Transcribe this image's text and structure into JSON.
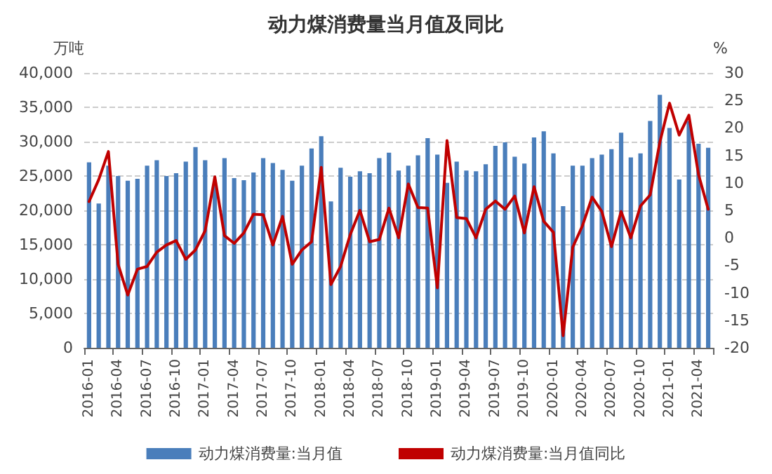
{
  "chart_data": {
    "type": "bar",
    "title": "动力煤消费量当月值及同比",
    "ylabel": "万吨",
    "y2label": "%",
    "categories": [
      "2016-01",
      null,
      null,
      "2016-04",
      null,
      null,
      "2016-07",
      null,
      null,
      "2016-10",
      null,
      null,
      "2017-01",
      null,
      null,
      "2017-04",
      null,
      null,
      "2017-07",
      null,
      null,
      "2017-10",
      null,
      null,
      "2018-01",
      null,
      null,
      "2018-04",
      null,
      null,
      "2018-07",
      null,
      null,
      "2018-10",
      null,
      null,
      "2019-01",
      null,
      null,
      "2019-04",
      null,
      null,
      "2019-07",
      null,
      null,
      "2019-10",
      null,
      null,
      "2020-01",
      null,
      null,
      "2020-04",
      null,
      null,
      "2020-07",
      null,
      null,
      "2020-10",
      null,
      null,
      "2021-01",
      null,
      null,
      "2021-04",
      null
    ],
    "series": [
      {
        "name": "动力煤消费量:当月值",
        "color": "#4a7ebb",
        "values": [
          27000,
          21000,
          26500,
          25000,
          24300,
          24600,
          26500,
          27300,
          25000,
          25400,
          27100,
          29200,
          27300,
          24000,
          27600,
          24700,
          24400,
          25500,
          27600,
          26900,
          25900,
          24300,
          26500,
          29000,
          30800,
          21300,
          26200,
          24900,
          25700,
          25400,
          27600,
          28400,
          25800,
          26500,
          28000,
          30500,
          28100,
          24000,
          27100,
          25800,
          25700,
          26700,
          29400,
          29900,
          27800,
          26800,
          30600,
          31500,
          28300,
          20600,
          26500,
          26500,
          27600,
          28100,
          28900,
          31300,
          27700,
          28300,
          33000,
          36800,
          32000,
          24500,
          33000,
          29700,
          29100
        ]
      },
      {
        "name": "动力煤消费量:当月值同比",
        "type": "line",
        "axis": "y2",
        "color": "#c00000",
        "values": [
          6.6,
          10.6,
          15.7,
          -4.8,
          -10.4,
          -5.7,
          -5.2,
          -2.6,
          -1.3,
          -0.5,
          -3.9,
          -2.2,
          1.3,
          11.1,
          0.4,
          -1.0,
          0.9,
          4.3,
          4.2,
          -1.3,
          3.9,
          -4.8,
          -2.2,
          -0.7,
          12.8,
          -8.5,
          -5.2,
          0.6,
          5.0,
          -0.7,
          -0.3,
          5.4,
          0.0,
          9.8,
          5.5,
          5.4,
          -9.1,
          17.7,
          3.7,
          3.5,
          0.0,
          5.2,
          6.7,
          5.2,
          7.6,
          0.9,
          9.3,
          3.0,
          1.0,
          -17.8,
          -1.7,
          2.2,
          7.4,
          4.8,
          -1.6,
          4.8,
          0.0,
          5.8,
          7.8,
          17.4,
          24.5,
          18.7,
          22.3,
          11.5,
          5.2
        ]
      }
    ],
    "ylim": [
      0,
      40000
    ],
    "yticks": [
      {
        "value": 0,
        "label": "0"
      },
      {
        "value": 5000,
        "label": "5,000"
      },
      {
        "value": 10000,
        "label": "10,000"
      },
      {
        "value": 15000,
        "label": "15,000"
      },
      {
        "value": 20000,
        "label": "20,000"
      },
      {
        "value": 25000,
        "label": "25,000"
      },
      {
        "value": 30000,
        "label": "30,000"
      },
      {
        "value": 35000,
        "label": "35,000"
      },
      {
        "value": 40000,
        "label": "40,000"
      }
    ],
    "y2lim": [
      -20,
      30
    ],
    "y2ticks": [
      -20,
      -15,
      -10,
      -5,
      0,
      5,
      10,
      15,
      20,
      25,
      30
    ],
    "grid": "y",
    "legend": "bottom",
    "marker": "none",
    "line_style": "solid"
  }
}
